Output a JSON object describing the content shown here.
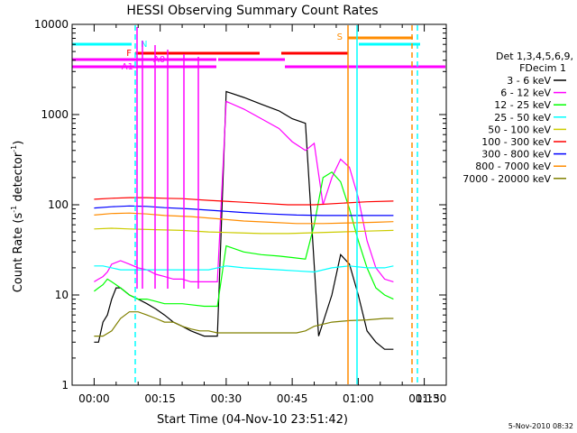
{
  "chart_data": {
    "type": "line",
    "title": "HESSI Observing Summary Count Rates",
    "xlabel": "Start Time (04-Nov-10 23:51:42)",
    "ylabel": "Count Rate (s⁻¹ detector⁻¹)",
    "ylabel_main": "Count Rate (s",
    "ylabel_sup1": "-1",
    "ylabel_mid": " detector",
    "ylabel_sup2": "-1",
    "ylabel_end": ")",
    "x_minutes_range": [
      -5,
      80
    ],
    "ylim": [
      1,
      10000
    ],
    "y_scale": "log",
    "x_ticks": [
      {
        "m": 0,
        "label": "00:00"
      },
      {
        "m": 15,
        "label": "00:15"
      },
      {
        "m": 30,
        "label": "00:30"
      },
      {
        "m": 45,
        "label": "00:45"
      },
      {
        "m": 60,
        "label": "01:00"
      },
      {
        "m": 75,
        "label": "01:15"
      },
      {
        "m": 90,
        "label": "01:30"
      }
    ],
    "y_ticks": [
      {
        "v": 1,
        "label": "1"
      },
      {
        "v": 10,
        "label": "10"
      },
      {
        "v": 100,
        "label": "100"
      },
      {
        "v": 1000,
        "label": "1000"
      },
      {
        "v": 10000,
        "label": "10000"
      }
    ],
    "legend_heading_1": "Det 1,3,4,5,6,9,",
    "legend_heading_2": "FDecim 1",
    "legend_position": "right",
    "legend": [
      {
        "label": "3 - 6 keV",
        "color": "#000000"
      },
      {
        "label": "6 - 12 keV",
        "color": "#ff00ff"
      },
      {
        "label": "12 - 25 keV",
        "color": "#00ff00"
      },
      {
        "label": "25 - 50 keV",
        "color": "#00ffff"
      },
      {
        "label": "50 - 100 keV",
        "color": "#cccc00"
      },
      {
        "label": "100 - 300 keV",
        "color": "#ff0000"
      },
      {
        "label": "300 - 800 keV",
        "color": "#0000ff"
      },
      {
        "label": "800 - 7000 keV",
        "color": "#ff8c00"
      },
      {
        "label": "7000 - 20000 keV",
        "color": "#808000"
      }
    ],
    "flags": [
      {
        "label": "N",
        "color": "#00ffff"
      },
      {
        "label": "F",
        "color": "#ff0000"
      },
      {
        "label": "A0",
        "color": "#ff00ff"
      },
      {
        "label": "A1",
        "color": "#ff00ff"
      },
      {
        "label": "S",
        "color": "#ff8c00"
      }
    ],
    "series": [
      {
        "name": "3 - 6 keV",
        "color": "#000000",
        "points": [
          [
            0,
            3
          ],
          [
            1,
            3
          ],
          [
            2,
            5
          ],
          [
            3,
            6
          ],
          [
            4,
            9
          ],
          [
            5,
            12
          ],
          [
            6,
            12
          ],
          [
            8,
            10
          ],
          [
            10,
            9
          ],
          [
            12,
            8
          ],
          [
            14,
            7
          ],
          [
            16,
            6
          ],
          [
            18,
            5
          ],
          [
            20,
            4.5
          ],
          [
            22,
            4
          ],
          [
            25,
            3.5
          ],
          [
            28,
            3.5
          ],
          [
            30,
            1800
          ],
          [
            34,
            1550
          ],
          [
            38,
            1300
          ],
          [
            42,
            1100
          ],
          [
            45,
            900
          ],
          [
            48,
            800
          ],
          [
            51,
            3.5
          ],
          [
            54,
            10
          ],
          [
            56,
            28
          ],
          [
            58,
            22
          ],
          [
            60,
            10
          ],
          [
            62,
            4
          ],
          [
            64,
            3
          ],
          [
            66,
            2.5
          ],
          [
            68,
            2.5
          ]
        ]
      },
      {
        "name": "6 - 12 keV",
        "color": "#ff00ff",
        "points": [
          [
            0,
            14
          ],
          [
            1,
            15
          ],
          [
            2,
            16
          ],
          [
            3,
            18
          ],
          [
            4,
            22
          ],
          [
            6,
            24
          ],
          [
            8,
            22
          ],
          [
            10,
            20
          ],
          [
            12,
            19
          ],
          [
            14,
            17
          ],
          [
            16,
            16
          ],
          [
            18,
            15
          ],
          [
            20,
            15
          ],
          [
            22,
            14
          ],
          [
            25,
            14
          ],
          [
            28,
            14
          ],
          [
            30,
            1400
          ],
          [
            34,
            1150
          ],
          [
            38,
            900
          ],
          [
            42,
            700
          ],
          [
            45,
            500
          ],
          [
            48,
            400
          ],
          [
            50,
            480
          ],
          [
            52,
            100
          ],
          [
            54,
            200
          ],
          [
            56,
            320
          ],
          [
            58,
            260
          ],
          [
            60,
            120
          ],
          [
            62,
            40
          ],
          [
            64,
            20
          ],
          [
            66,
            15
          ],
          [
            68,
            14
          ]
        ]
      },
      {
        "name": "12 - 25 keV",
        "color": "#00ff00",
        "points": [
          [
            0,
            11
          ],
          [
            1,
            12
          ],
          [
            2,
            13
          ],
          [
            3,
            15
          ],
          [
            4,
            14
          ],
          [
            6,
            12
          ],
          [
            8,
            10
          ],
          [
            10,
            9
          ],
          [
            12,
            9
          ],
          [
            14,
            8.5
          ],
          [
            16,
            8
          ],
          [
            18,
            8
          ],
          [
            20,
            8
          ],
          [
            22,
            7.8
          ],
          [
            25,
            7.5
          ],
          [
            28,
            7.5
          ],
          [
            30,
            35
          ],
          [
            34,
            30
          ],
          [
            38,
            28
          ],
          [
            42,
            27
          ],
          [
            45,
            26
          ],
          [
            48,
            25
          ],
          [
            50,
            60
          ],
          [
            52,
            200
          ],
          [
            54,
            230
          ],
          [
            56,
            180
          ],
          [
            58,
            90
          ],
          [
            60,
            40
          ],
          [
            62,
            20
          ],
          [
            64,
            12
          ],
          [
            66,
            10
          ],
          [
            68,
            9
          ]
        ]
      },
      {
        "name": "25 - 50 keV",
        "color": "#00ffff",
        "points": [
          [
            0,
            21
          ],
          [
            2,
            21
          ],
          [
            4,
            20
          ],
          [
            6,
            19
          ],
          [
            8,
            19
          ],
          [
            10,
            19
          ],
          [
            14,
            19
          ],
          [
            18,
            19
          ],
          [
            22,
            19
          ],
          [
            26,
            19
          ],
          [
            30,
            21
          ],
          [
            34,
            20
          ],
          [
            38,
            19.5
          ],
          [
            42,
            19
          ],
          [
            46,
            18.5
          ],
          [
            50,
            18
          ],
          [
            54,
            20
          ],
          [
            58,
            21
          ],
          [
            62,
            20
          ],
          [
            66,
            20
          ],
          [
            68,
            21
          ]
        ]
      },
      {
        "name": "50 - 100 keV",
        "color": "#cccc00",
        "points": [
          [
            0,
            54
          ],
          [
            4,
            55
          ],
          [
            8,
            54
          ],
          [
            14,
            53
          ],
          [
            20,
            52
          ],
          [
            26,
            50
          ],
          [
            32,
            49
          ],
          [
            38,
            48
          ],
          [
            44,
            48
          ],
          [
            50,
            49
          ],
          [
            56,
            50
          ],
          [
            62,
            51
          ],
          [
            68,
            52
          ]
        ]
      },
      {
        "name": "100 - 300 keV",
        "color": "#ff0000",
        "points": [
          [
            0,
            115
          ],
          [
            4,
            118
          ],
          [
            8,
            120
          ],
          [
            12,
            120
          ],
          [
            16,
            118
          ],
          [
            20,
            117
          ],
          [
            26,
            112
          ],
          [
            32,
            108
          ],
          [
            38,
            104
          ],
          [
            44,
            100
          ],
          [
            50,
            100
          ],
          [
            56,
            104
          ],
          [
            62,
            108
          ],
          [
            68,
            110
          ]
        ]
      },
      {
        "name": "300 - 800 keV",
        "color": "#0000ff",
        "points": [
          [
            0,
            92
          ],
          [
            4,
            95
          ],
          [
            8,
            97
          ],
          [
            12,
            96
          ],
          [
            16,
            93
          ],
          [
            22,
            90
          ],
          [
            28,
            86
          ],
          [
            34,
            82
          ],
          [
            40,
            79
          ],
          [
            46,
            77
          ],
          [
            52,
            76
          ],
          [
            58,
            76
          ],
          [
            64,
            76
          ],
          [
            68,
            76
          ]
        ]
      },
      {
        "name": "800 - 7000 keV",
        "color": "#ff8c00",
        "points": [
          [
            0,
            77
          ],
          [
            4,
            80
          ],
          [
            8,
            81
          ],
          [
            12,
            79
          ],
          [
            16,
            76
          ],
          [
            22,
            74
          ],
          [
            28,
            70
          ],
          [
            34,
            66
          ],
          [
            40,
            64
          ],
          [
            46,
            62
          ],
          [
            52,
            62
          ],
          [
            58,
            63
          ],
          [
            64,
            64
          ],
          [
            68,
            65
          ]
        ]
      },
      {
        "name": "7000 - 20000 keV",
        "color": "#808000",
        "points": [
          [
            0,
            3.5
          ],
          [
            2,
            3.5
          ],
          [
            4,
            4
          ],
          [
            6,
            5.5
          ],
          [
            8,
            6.5
          ],
          [
            10,
            6.5
          ],
          [
            12,
            6
          ],
          [
            14,
            5.5
          ],
          [
            16,
            5
          ],
          [
            18,
            5
          ],
          [
            20,
            4.5
          ],
          [
            22,
            4.2
          ],
          [
            24,
            4
          ],
          [
            26,
            4
          ],
          [
            28,
            3.8
          ],
          [
            30,
            3.8
          ],
          [
            32,
            3.8
          ],
          [
            34,
            3.8
          ],
          [
            36,
            3.8
          ],
          [
            38,
            3.8
          ],
          [
            40,
            3.8
          ],
          [
            42,
            3.8
          ],
          [
            44,
            3.8
          ],
          [
            46,
            3.8
          ],
          [
            48,
            4
          ],
          [
            50,
            4.5
          ],
          [
            54,
            5
          ],
          [
            58,
            5.2
          ],
          [
            62,
            5.3
          ],
          [
            66,
            5.5
          ],
          [
            68,
            5.5
          ]
        ]
      }
    ]
  },
  "footer": {
    "date": "5-Nov-2010 08:32"
  }
}
